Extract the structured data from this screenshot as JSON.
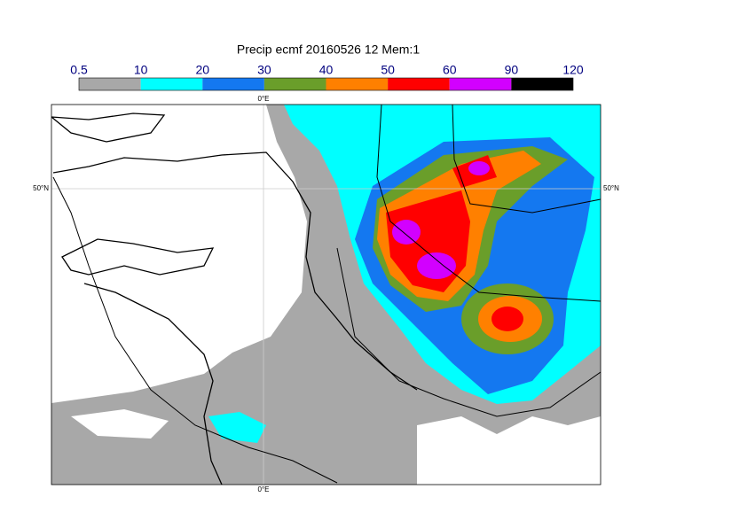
{
  "title": "Precip ecmf 20160526 12 Mem:1",
  "legend": {
    "levels": [
      0.5,
      10,
      20,
      30,
      40,
      50,
      60,
      90,
      120
    ],
    "colors": [
      "#a8a8a8",
      "#00ffff",
      "#1478f0",
      "#6a9e2a",
      "#ff8000",
      "#ff0000",
      "#d200ff",
      "#000000"
    ]
  },
  "grid_labels": {
    "meridian": "0°E",
    "parallel": "50°N"
  }
}
